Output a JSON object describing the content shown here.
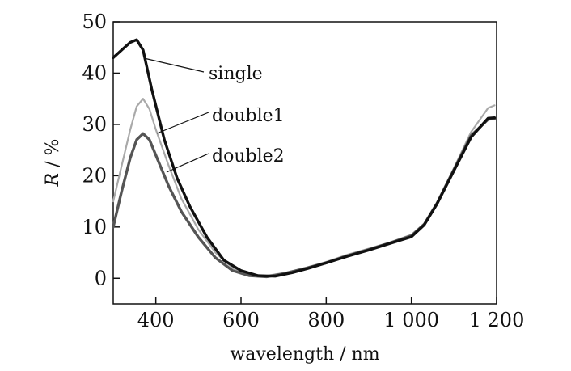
{
  "chart_data": {
    "type": "line",
    "title": "",
    "xlabel": "wavelength / nm",
    "ylabel_var": "R",
    "ylabel_unit": " / %",
    "xlim": [
      300,
      1200
    ],
    "ylim": [
      -5,
      50
    ],
    "xticks": [
      400,
      600,
      800,
      1000,
      1200
    ],
    "xtick_labels": [
      "400",
      "600",
      "800",
      "1 000",
      "1 200"
    ],
    "yticks": [
      0,
      10,
      20,
      30,
      40,
      50
    ],
    "ytick_labels": [
      "0",
      "10",
      "20",
      "30",
      "40",
      "50"
    ],
    "grid": false,
    "legend": "inline-labels",
    "series": [
      {
        "name": "single",
        "color": "#111111",
        "x": [
          300,
          320,
          340,
          355,
          370,
          390,
          420,
          450,
          480,
          520,
          560,
          600,
          640,
          680,
          720,
          760,
          800,
          850,
          900,
          950,
          1000,
          1030,
          1060,
          1100,
          1140,
          1180,
          1195
        ],
        "y": [
          43,
          44.5,
          46,
          46.5,
          44.5,
          37,
          27,
          19.5,
          14,
          8,
          3.5,
          1.5,
          0.5,
          0.4,
          1.1,
          2.0,
          3.0,
          4.3,
          5.5,
          6.8,
          8.1,
          10.4,
          14.5,
          21,
          27.5,
          31.2,
          31.3
        ]
      },
      {
        "name": "double1",
        "color": "#a9a9a9",
        "x": [
          300,
          320,
          340,
          355,
          370,
          385,
          400,
          430,
          460,
          500,
          540,
          580,
          620,
          660,
          700,
          750,
          800,
          850,
          900,
          950,
          1000,
          1030,
          1060,
          1100,
          1140,
          1180,
          1195
        ],
        "y": [
          15,
          22,
          29,
          33.5,
          35,
          33,
          29,
          22,
          15.5,
          9.5,
          5,
          2,
          0.8,
          0.5,
          1.0,
          2.0,
          3.2,
          4.6,
          5.8,
          7.0,
          8.5,
          10.7,
          14.8,
          21.5,
          28.5,
          33.2,
          33.7
        ]
      },
      {
        "name": "double2",
        "color": "#555555",
        "x": [
          300,
          320,
          340,
          355,
          370,
          385,
          400,
          430,
          460,
          500,
          540,
          580,
          620,
          660,
          700,
          750,
          800,
          850,
          900,
          950,
          1000,
          1030,
          1060,
          1100,
          1140,
          1180,
          1195
        ],
        "y": [
          10,
          17,
          23.5,
          27,
          28.2,
          27,
          24,
          18,
          13,
          8,
          4,
          1.5,
          0.5,
          0.3,
          0.9,
          1.9,
          3.0,
          4.4,
          5.6,
          6.9,
          8.3,
          10.5,
          14.6,
          21.2,
          27.8,
          31.0,
          31.1
        ]
      }
    ],
    "annotations": [
      {
        "text": "single",
        "series": 0
      },
      {
        "text": "double1",
        "series": 1
      },
      {
        "text": "double2",
        "series": 2
      }
    ]
  }
}
